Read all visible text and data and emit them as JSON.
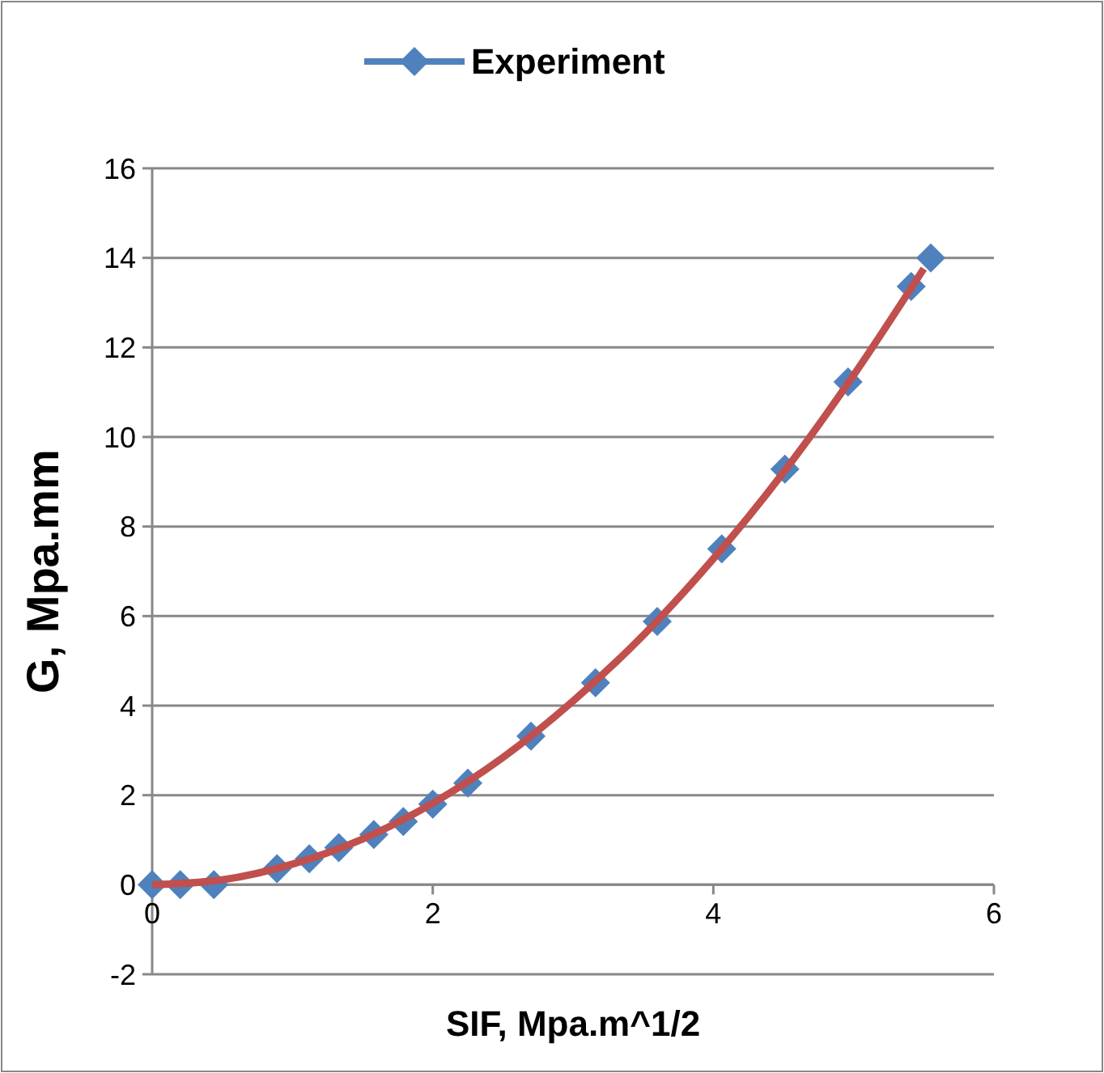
{
  "chart_data": {
    "type": "line",
    "xlabel": "SIF, Mpa.m^1/2",
    "ylabel": "G, Mpa.mm",
    "xlim": [
      0,
      6
    ],
    "xticks": [
      0,
      2,
      4,
      6
    ],
    "ylim": [
      -2,
      16
    ],
    "yticks": [
      -2,
      0,
      2,
      4,
      6,
      8,
      10,
      12,
      14,
      16
    ],
    "grid": "y",
    "legend": "top",
    "series": [
      {
        "name": "Experiment",
        "color": "#4f81bd",
        "type": "scatter",
        "marker": "diamond",
        "x": [
          0,
          0.2,
          0.44,
          0.89,
          1.12,
          1.33,
          1.58,
          1.79,
          2.0,
          2.25,
          2.7,
          3.16,
          3.6,
          4.06,
          4.51,
          4.96,
          5.41,
          5.55
        ],
        "values": [
          0,
          0,
          0,
          0.36,
          0.58,
          0.83,
          1.12,
          1.41,
          1.8,
          2.27,
          3.32,
          4.51,
          5.88,
          7.5,
          9.28,
          11.23,
          13.36,
          14.0
        ]
      },
      {
        "color": "#c0504d",
        "marker": "none",
        "x": [
          0,
          0.5,
          1,
          1.5,
          2,
          2.5,
          3,
          3.5,
          4,
          4.5,
          5,
          5.5
        ],
        "values": [
          0,
          0.11,
          0.46,
          1.02,
          1.82,
          2.84,
          4.1,
          5.57,
          7.28,
          9.21,
          11.38,
          13.76
        ]
      }
    ]
  }
}
